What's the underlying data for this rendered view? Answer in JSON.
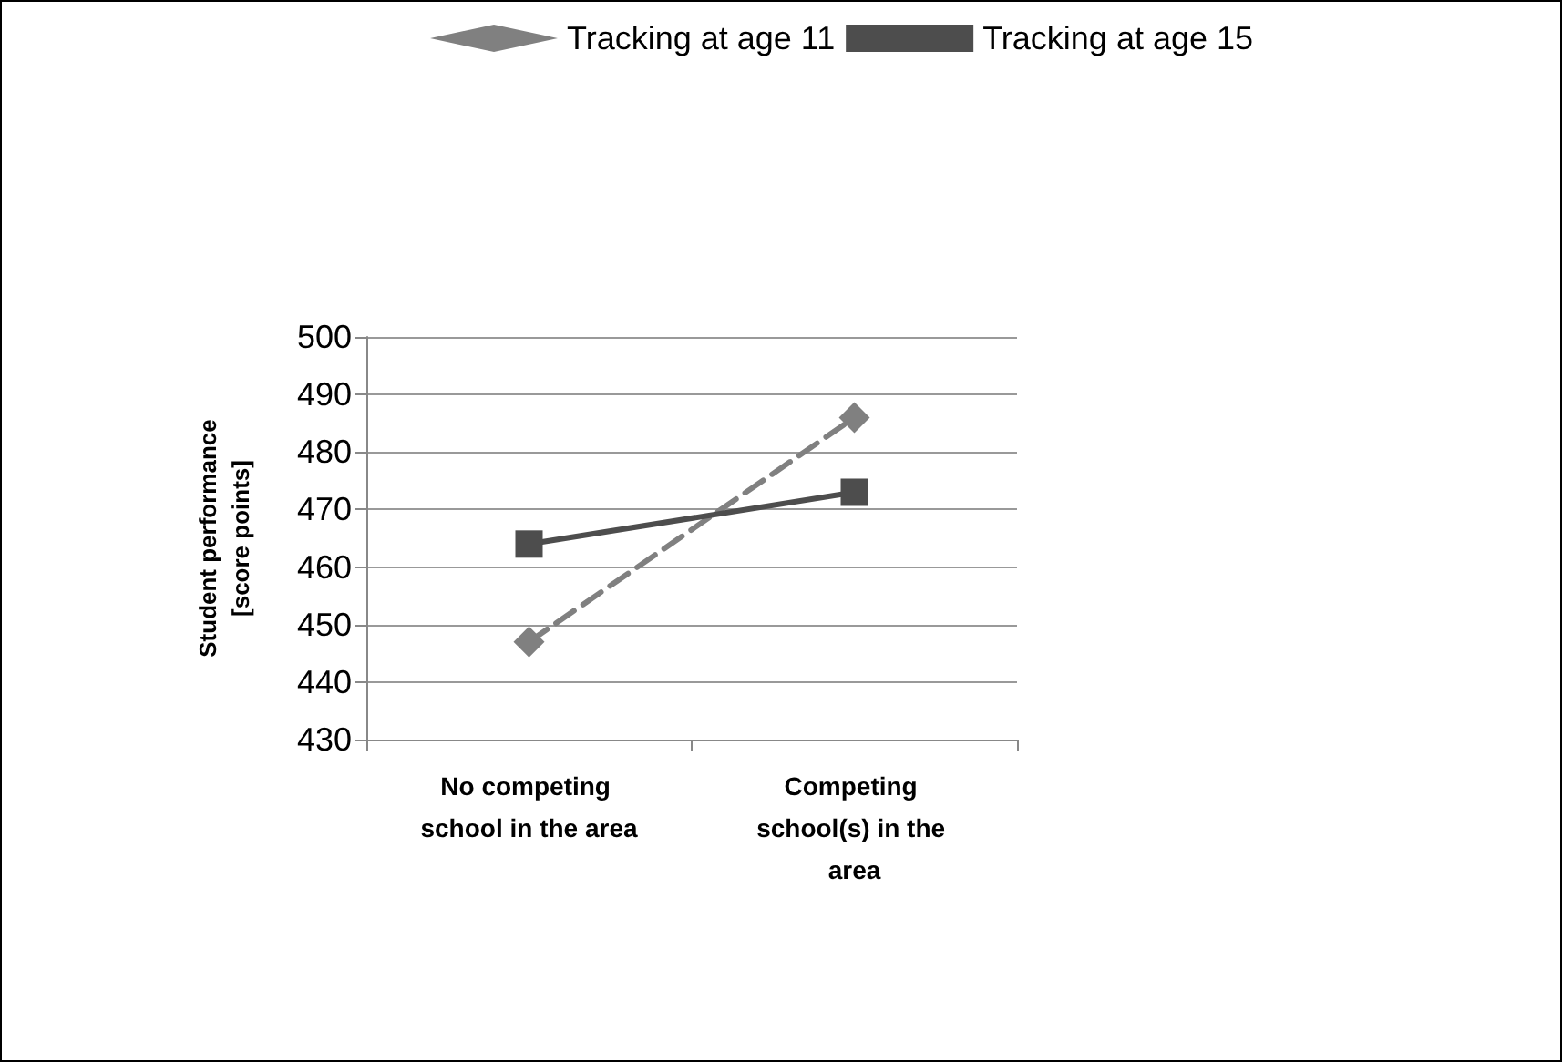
{
  "chart_data": {
    "type": "line",
    "ylabel": "Student performance\n[score points]",
    "categories": [
      "No competing school in the area",
      "Competing school(s) in the area"
    ],
    "series": [
      {
        "name": "Tracking at age 11",
        "color": "#808080",
        "values": [
          447,
          486
        ],
        "marker": "diamond",
        "line_style": "dashed"
      },
      {
        "name": "Tracking at age 15",
        "color": "#4d4d4d",
        "values": [
          464,
          473
        ],
        "marker": "square",
        "line_style": "solid"
      }
    ],
    "ylim": [
      430,
      500
    ],
    "yticks": [
      430,
      440,
      450,
      460,
      470,
      480,
      490,
      500
    ],
    "grid": "y",
    "legend": "top"
  }
}
